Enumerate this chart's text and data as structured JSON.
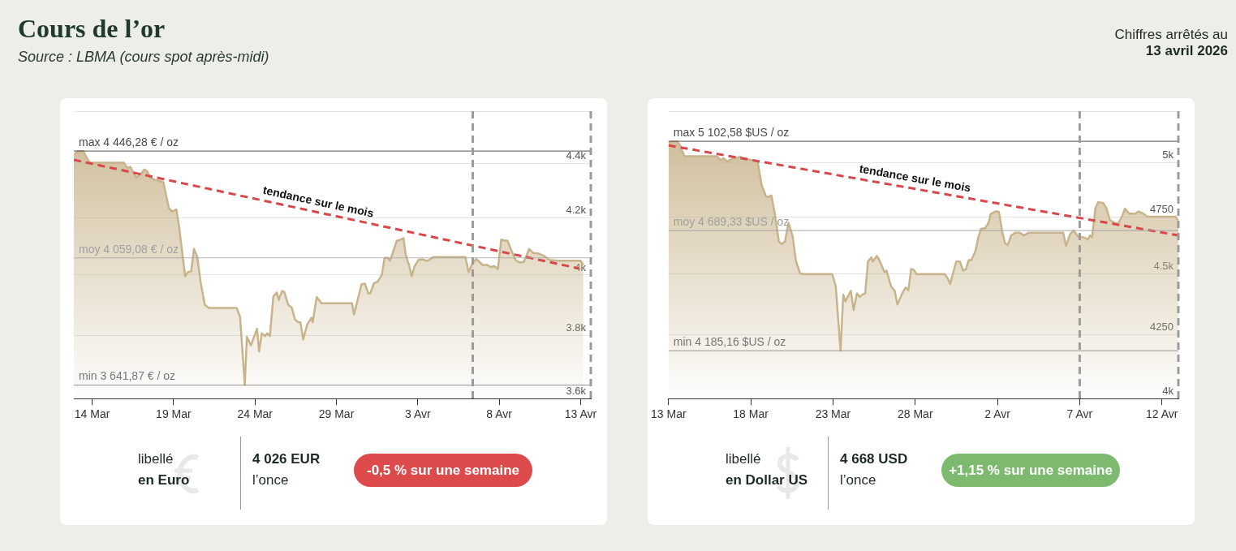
{
  "chart_data": [
    {
      "type": "other",
      "title": "Cours de l’or",
      "annotations": [
        "Source : LBMA (cours spot après-midi)",
        "Chiffres arrêtés au",
        "13 avril 2026"
      ]
    },
    {
      "type": "area",
      "log": true,
      "grid": "y",
      "xlim": [
        "2026-03-12T21:00",
        "2026-04-13T15:00"
      ],
      "xticks": [
        {
          "value": "2026-03-14",
          "label": "14 Mar"
        },
        {
          "value": "2026-03-19",
          "label": "19 Mar"
        },
        {
          "value": "2026-03-24",
          "label": "24 Mar"
        },
        {
          "value": "2026-03-29",
          "label": "29 Mar"
        },
        {
          "value": "2026-04-03",
          "label": "3 Avr"
        },
        {
          "value": "2026-04-08",
          "label": "8 Avr"
        },
        {
          "value": "2026-04-13",
          "label": "13 Avr"
        }
      ],
      "ylim": [
        3600,
        4600
      ],
      "yticks": [
        {
          "value": 3600,
          "label": "3.6k"
        },
        {
          "value": 3800,
          "label": "3.8k"
        },
        {
          "value": 4000,
          "label": "4k"
        },
        {
          "value": 4200,
          "label": "4.2k"
        },
        {
          "value": 4400,
          "label": "4.4k"
        },
        {
          "value": 4600,
          "label": null
        }
      ],
      "series": [
        {
          "type": "area",
          "color": "#c8b48c",
          "x": [
            "2026-03-12T21:00",
            "2026-03-13T03:00",
            "2026-03-13T11:00",
            "2026-03-13T17:00",
            "2026-03-13T21:00",
            "2026-03-15T23:00",
            "2026-03-16T04:00",
            "2026-03-16T08:00",
            "2026-03-16T17:00",
            "2026-03-17T00:00",
            "2026-03-17T05:00",
            "2026-03-17T09:00",
            "2026-03-17T14:00",
            "2026-03-17T22:00",
            "2026-03-18T06:00",
            "2026-03-18T09:00",
            "2026-03-18T17:00",
            "2026-03-18T22:00",
            "2026-03-19T04:00",
            "2026-03-19T08:00",
            "2026-03-19T17:00",
            "2026-03-19T21:00",
            "2026-03-20T02:00",
            "2026-03-20T06:00",
            "2026-03-20T11:00",
            "2026-03-20T16:00",
            "2026-03-20T22:00",
            "2026-03-21T04:00",
            "2026-03-22T21:00",
            "2026-03-23T02:00",
            "2026-03-23T09:00",
            "2026-03-23T12:00",
            "2026-03-23T18:00",
            "2026-03-24T03:00",
            "2026-03-24T06:00",
            "2026-03-24T10:00",
            "2026-03-24T15:00",
            "2026-03-24T18:00",
            "2026-03-24T22:00",
            "2026-03-25T03:00",
            "2026-03-25T08:00",
            "2026-03-25T11:00",
            "2026-03-25T16:00",
            "2026-03-25T19:00",
            "2026-03-26T01:00",
            "2026-03-26T06:00",
            "2026-03-26T11:00",
            "2026-03-26T16:00",
            "2026-03-26T19:00",
            "2026-03-26T23:00",
            "2026-03-27T05:00",
            "2026-03-27T11:00",
            "2026-03-27T13:00",
            "2026-03-27T19:00",
            "2026-03-28T02:00",
            "2026-03-29T23:00",
            "2026-03-30T02:00",
            "2026-03-30T13:00",
            "2026-03-30T18:00",
            "2026-03-30T23:00",
            "2026-03-31T02:00",
            "2026-03-31T07:00",
            "2026-03-31T13:00",
            "2026-03-31T19:00",
            "2026-03-31T23:00",
            "2026-04-01T04:00",
            "2026-04-01T07:00",
            "2026-04-01T13:00",
            "2026-04-01T17:00",
            "2026-04-01T23:00",
            "2026-04-02T03:00",
            "2026-04-02T06:00",
            "2026-04-02T11:00",
            "2026-04-02T15:00",
            "2026-04-02T19:00",
            "2026-04-03T01:00",
            "2026-04-03T07:00",
            "2026-04-03T13:00",
            "2026-04-03T17:00",
            "2026-04-03T23:00",
            "2026-04-05T22:00",
            "2026-04-06T03:00",
            "2026-04-06T08:00",
            "2026-04-06T14:00",
            "2026-04-06T18:00",
            "2026-04-07T00:00",
            "2026-04-07T06:00",
            "2026-04-07T12:00",
            "2026-04-07T16:00",
            "2026-04-07T22:00",
            "2026-04-08T03:00",
            "2026-04-08T08:00",
            "2026-04-08T12:00",
            "2026-04-08T17:00",
            "2026-04-09T00:00",
            "2026-04-09T06:00",
            "2026-04-09T12:00",
            "2026-04-09T16:00",
            "2026-04-09T20:00",
            "2026-04-10T02:00",
            "2026-04-10T10:00",
            "2026-04-10T18:00",
            "2026-04-11T02:00",
            "2026-04-11T14:00",
            "2026-04-13T00:00",
            "2026-04-13T04:00"
          ],
          "values": [
            4431,
            4446,
            4446,
            4416,
            4402,
            4402,
            4382,
            4387,
            4347,
            4361,
            4377,
            4370,
            4346,
            4337,
            4332,
            4329,
            4235,
            4223,
            4230,
            4171,
            3996,
            4010,
            4013,
            4090,
            4062,
            3973,
            3900,
            3889,
            3889,
            3860,
            3642,
            3795,
            3767,
            3821,
            3748,
            3806,
            3797,
            3806,
            3797,
            3927,
            3941,
            3916,
            3946,
            3943,
            3900,
            3891,
            3851,
            3842,
            3842,
            3786,
            3835,
            3857,
            3842,
            3926,
            3905,
            3905,
            3868,
            3968,
            3971,
            3938,
            3938,
            3971,
            3978,
            4001,
            4059,
            4059,
            4049,
            4090,
            4119,
            4123,
            4128,
            4071,
            4034,
            3996,
            4029,
            4052,
            4054,
            4049,
            4052,
            4062,
            4062,
            4010,
            4038,
            4055,
            4047,
            4034,
            4035,
            4027,
            4031,
            4021,
            4123,
            4119,
            4119,
            4090,
            4052,
            4043,
            4045,
            4066,
            4090,
            4076,
            4074,
            4066,
            4052,
            4049,
            4049,
            4034
          ]
        },
        {
          "type": "line",
          "name": "tendance sur le mois",
          "color": "#d8474a",
          "line_style": "dashed",
          "x": [
            "2026-03-12T21:00",
            "2026-04-12T21:00"
          ],
          "values": [
            4413,
            4023
          ]
        }
      ],
      "ref_lines": [
        {
          "axis": "y",
          "value": 4446.28,
          "label": "max 4 446,28 € / oz",
          "color": "#4a4a4a"
        },
        {
          "axis": "y",
          "value": 4059.08,
          "label": "moy 4 059,08 € / oz",
          "color": "#a0a0a0"
        },
        {
          "axis": "y",
          "value": 3641.87,
          "label": "min 3 641,87 € / oz",
          "color": "#777777"
        },
        {
          "axis": "x",
          "value": "2026-04-06T09:00",
          "color": "#9b9b9b",
          "line_style": "dashed"
        },
        {
          "axis": "x",
          "value": "2026-04-13T15:00",
          "color": "#9b9b9b",
          "line_style": "dashed"
        }
      ],
      "annotations": [
        "libellé",
        "en Euro",
        "4 026 EUR",
        "l’once",
        "-0,5 % sur une semaine"
      ]
    },
    {
      "type": "area",
      "log": true,
      "grid": "y",
      "xlim": [
        "2026-03-13",
        "2026-04-13"
      ],
      "xticks": [
        {
          "value": "2026-03-13",
          "label": "13 Mar"
        },
        {
          "value": "2026-03-18",
          "label": "18 Mar"
        },
        {
          "value": "2026-03-23",
          "label": "23 Mar"
        },
        {
          "value": "2026-03-28",
          "label": "28 Mar"
        },
        {
          "value": "2026-04-02",
          "label": "2 Avr"
        },
        {
          "value": "2026-04-07",
          "label": "7 Avr"
        },
        {
          "value": "2026-04-12",
          "label": "12 Avr"
        }
      ],
      "ylim": [
        4000,
        5250
      ],
      "yticks": [
        {
          "value": 4000,
          "label": "4k"
        },
        4250,
        {
          "value": 4500,
          "label": "4.5k"
        },
        4750,
        {
          "value": 5000,
          "label": "5k"
        },
        {
          "value": 5250,
          "label": null
        }
      ],
      "series": [
        {
          "type": "area",
          "color": "#c8b48c",
          "x": [
            "2026-03-13T00:00",
            "2026-03-13T05:00",
            "2026-03-13T13:00",
            "2026-03-13T17:00",
            "2026-03-13T23:00",
            "2026-03-15T23:00",
            "2026-03-16T04:00",
            "2026-03-16T08:00",
            "2026-03-16T14:00",
            "2026-03-16T21:00",
            "2026-03-17T03:00",
            "2026-03-17T09:00",
            "2026-03-17T14:00",
            "2026-03-17T22:00",
            "2026-03-18T10:00",
            "2026-03-18T16:00",
            "2026-03-18T22:00",
            "2026-03-19T01:00",
            "2026-03-19T06:00",
            "2026-03-19T11:00",
            "2026-03-19T17:00",
            "2026-03-19T21:00",
            "2026-03-20T02:00",
            "2026-03-20T07:00",
            "2026-03-20T13:00",
            "2026-03-20T18:00",
            "2026-03-21T00:00",
            "2026-03-21T06:00",
            "2026-03-22T23:00",
            "2026-03-23T04:00",
            "2026-03-23T11:00",
            "2026-03-23T15:00",
            "2026-03-23T18:00",
            "2026-03-24T02:00",
            "2026-03-24T06:00",
            "2026-03-24T11:00",
            "2026-03-24T15:00",
            "2026-03-24T20:00",
            "2026-03-24T23:00",
            "2026-03-25T03:00",
            "2026-03-25T08:00",
            "2026-03-25T10:00",
            "2026-03-25T16:00",
            "2026-03-25T19:00",
            "2026-03-26T03:00",
            "2026-03-26T06:00",
            "2026-03-26T13:00",
            "2026-03-26T18:00",
            "2026-03-26T22:00",
            "2026-03-27T05:00",
            "2026-03-27T10:00",
            "2026-03-27T14:00",
            "2026-03-27T18:00",
            "2026-03-27T22:00",
            "2026-03-28T02:00",
            "2026-03-29T19:00",
            "2026-03-29T23:00",
            "2026-03-30T03:00",
            "2026-03-30T07:00",
            "2026-03-30T12:00",
            "2026-03-30T17:00",
            "2026-03-30T22:00",
            "2026-03-31T02:00",
            "2026-03-31T06:00",
            "2026-03-31T10:00",
            "2026-03-31T16:00",
            "2026-03-31T20:00",
            "2026-04-01T00:00",
            "2026-04-01T06:00",
            "2026-04-01T11:00",
            "2026-04-01T14:00",
            "2026-04-01T21:00",
            "2026-04-02T02:00",
            "2026-04-02T07:00",
            "2026-04-02T11:00",
            "2026-04-02T15:00",
            "2026-04-02T20:00",
            "2026-04-03T02:00",
            "2026-04-03T09:00",
            "2026-04-03T14:00",
            "2026-04-03T22:00",
            "2026-04-06T00:00",
            "2026-04-06T04:00",
            "2026-04-06T10:00",
            "2026-04-06T15:00",
            "2026-04-06T22:00",
            "2026-04-07T06:00",
            "2026-04-07T12:00",
            "2026-04-07T15:00",
            "2026-04-07T18:00",
            "2026-04-07T23:00",
            "2026-04-08T03:00",
            "2026-04-08T10:00",
            "2026-04-08T15:00",
            "2026-04-08T20:00",
            "2026-04-09T03:00",
            "2026-04-09T08:00",
            "2026-04-09T14:00",
            "2026-04-09T18:00",
            "2026-04-10T00:00",
            "2026-04-10T08:00",
            "2026-04-10T14:00",
            "2026-04-10T20:00",
            "2026-04-11T03:00",
            "2026-04-12T20:00",
            "2026-04-13T00:00"
          ],
          "values": [
            5096,
            5102,
            5101,
            5082,
            5031,
            5031,
            5012,
            5021,
            5006,
            5019,
            5023,
            5028,
            5019,
            5015,
            5006,
            4894,
            4845,
            4839,
            4848,
            4766,
            4641,
            4630,
            4641,
            4724,
            4665,
            4554,
            4503,
            4500,
            4500,
            4447,
            4186,
            4413,
            4385,
            4430,
            4350,
            4419,
            4404,
            4416,
            4419,
            4554,
            4572,
            4554,
            4578,
            4564,
            4509,
            4515,
            4447,
            4430,
            4372,
            4419,
            4443,
            4432,
            4522,
            4518,
            4500,
            4500,
            4484,
            4458,
            4503,
            4554,
            4554,
            4515,
            4521,
            4560,
            4560,
            4601,
            4659,
            4697,
            4700,
            4724,
            4764,
            4775,
            4773,
            4683,
            4634,
            4625,
            4668,
            4680,
            4680,
            4668,
            4680,
            4680,
            4622,
            4673,
            4689,
            4661,
            4659,
            4650,
            4668,
            4659,
            4790,
            4817,
            4814,
            4790,
            4736,
            4724,
            4720,
            4754,
            4788,
            4766,
            4764,
            4775,
            4766,
            4751,
            4751,
            4732
          ]
        },
        {
          "type": "line",
          "name": "tendance sur le mois",
          "color": "#d8474a",
          "line_style": "dashed",
          "x": [
            "2026-03-13",
            "2026-04-13"
          ],
          "values": [
            5083,
            4668
          ]
        }
      ],
      "ref_lines": [
        {
          "axis": "y",
          "value": 5102.58,
          "label": "max 5 102,58 $US / oz",
          "color": "#4a4a4a"
        },
        {
          "axis": "y",
          "value": 4689.33,
          "label": "moy 4 689,33 $US / oz",
          "color": "#a0a0a0"
        },
        {
          "axis": "y",
          "value": 4185.16,
          "label": "min 4 185,16 $US / oz",
          "color": "#777777"
        },
        {
          "axis": "x",
          "value": "2026-04-07",
          "color": "#9b9b9b",
          "line_style": "dashed"
        },
        {
          "axis": "x",
          "value": "2026-04-13",
          "color": "#9b9b9b",
          "line_style": "dashed"
        }
      ],
      "annotations": [
        "libellé",
        "en Dollar US",
        "4 668 USD",
        "l’once",
        "+1,15 % sur une semaine"
      ]
    }
  ]
}
